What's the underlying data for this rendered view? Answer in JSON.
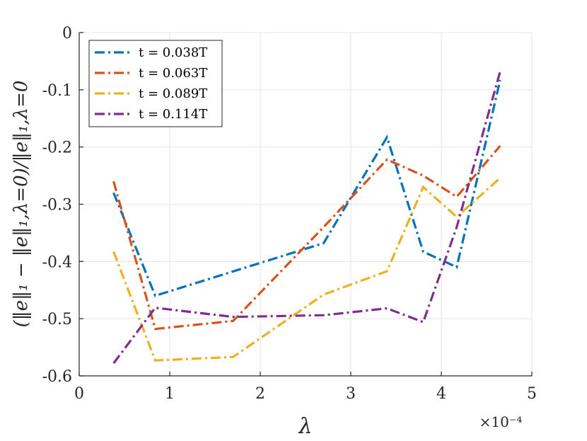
{
  "chart_data": {
    "type": "line",
    "title": "",
    "xlabel": "λ",
    "ylabel": "(‖e‖₁ − ‖e‖₁,λ=0)/‖e‖₁,λ=0",
    "x_exponent_label": "×10⁻⁴",
    "xlim": [
      0,
      5
    ],
    "ylim": [
      -0.6,
      0
    ],
    "x_ticks": [
      0,
      1,
      2,
      3,
      4,
      5
    ],
    "x_tick_labels": [
      "0",
      "1",
      "2",
      "3",
      "4",
      "5"
    ],
    "y_ticks": [
      0,
      -0.1,
      -0.2,
      -0.3,
      -0.4,
      -0.5,
      -0.6
    ],
    "y_tick_labels": [
      "0",
      "-0.1",
      "-0.2",
      "-0.3",
      "-0.4",
      "-0.5",
      "-0.6"
    ],
    "grid": true,
    "legend_position": "top-left",
    "series": [
      {
        "name": "t = 0.038T",
        "color": "#0072BD",
        "style": "dashdot",
        "x": [
          0.38,
          0.84,
          2.7,
          3.4,
          3.8,
          4.17,
          4.65
        ],
        "y": [
          -0.28,
          -0.46,
          -0.368,
          -0.183,
          -0.383,
          -0.41,
          -0.083
        ]
      },
      {
        "name": "t = 0.063T",
        "color": "#D95319",
        "style": "dashdot",
        "x": [
          0.38,
          0.84,
          1.7,
          2.7,
          3.4,
          3.8,
          4.17,
          4.65
        ],
        "y": [
          -0.26,
          -0.518,
          -0.504,
          -0.34,
          -0.222,
          -0.25,
          -0.287,
          -0.198
        ]
      },
      {
        "name": "t = 0.089T",
        "color": "#EDB120",
        "style": "dashdot",
        "x": [
          0.38,
          0.84,
          1.7,
          2.7,
          3.4,
          3.8,
          4.17,
          4.65
        ],
        "y": [
          -0.383,
          -0.573,
          -0.567,
          -0.458,
          -0.417,
          -0.27,
          -0.322,
          -0.254
        ]
      },
      {
        "name": "t = 0.114T",
        "color": "#7E2F8E",
        "style": "dashdot",
        "x": [
          0.38,
          0.84,
          1.7,
          2.7,
          3.4,
          3.8,
          4.17,
          4.65
        ],
        "y": [
          -0.578,
          -0.481,
          -0.497,
          -0.494,
          -0.482,
          -0.506,
          -0.34,
          -0.068
        ]
      }
    ]
  }
}
